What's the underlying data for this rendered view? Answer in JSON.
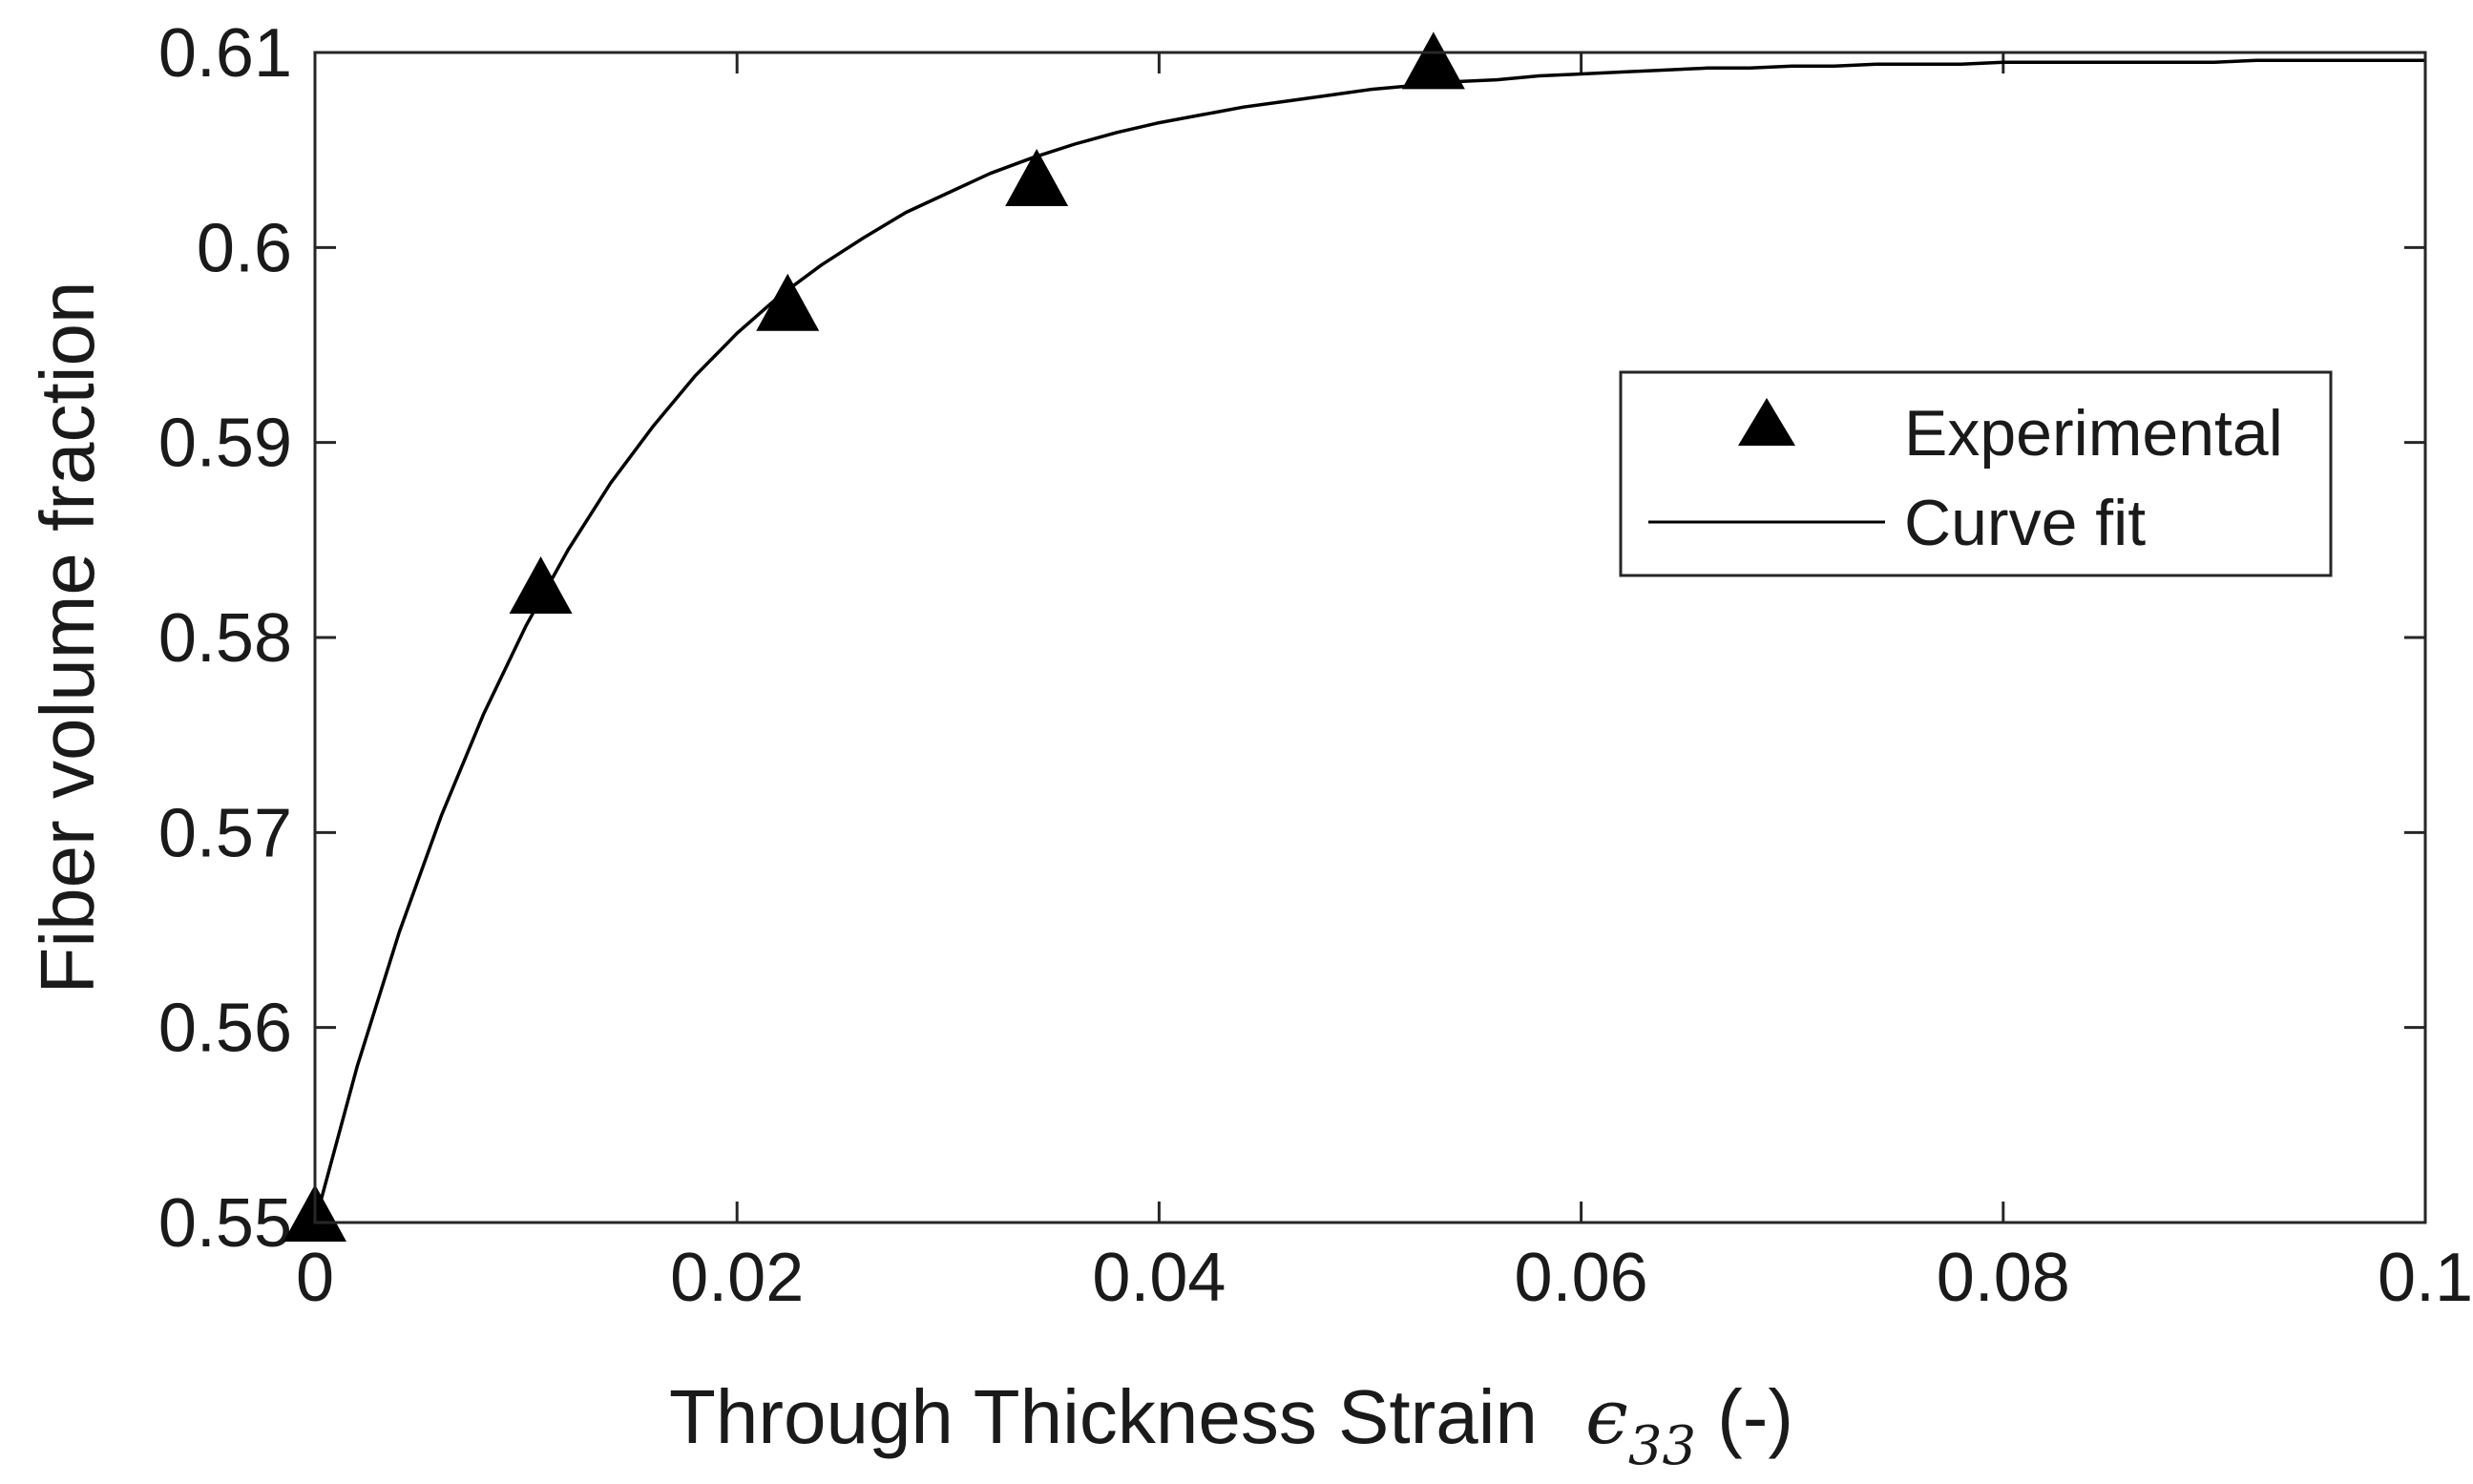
{
  "chart_data": {
    "type": "scatter",
    "title": "",
    "xlabel": {
      "prefix": "Through Thickness Strain",
      "symbol": "ϵ",
      "subscript": "33",
      "suffix": "(-)"
    },
    "ylabel": "Fiber volume fraction",
    "xlim": [
      0,
      0.1
    ],
    "ylim": [
      0.55,
      0.61
    ],
    "xticks": [
      0,
      0.02,
      0.04,
      0.06,
      0.08,
      0.1
    ],
    "xtick_labels": [
      "0",
      "0.02",
      "0.04",
      "0.06",
      "0.08",
      "0.1"
    ],
    "yticks": [
      0.55,
      0.56,
      0.57,
      0.58,
      0.59,
      0.6,
      0.61
    ],
    "ytick_labels": [
      "0.55",
      "0.56",
      "0.57",
      "0.58",
      "0.59",
      "0.6",
      "0.61"
    ],
    "grid": false,
    "legend_position": "upper-right",
    "series": [
      {
        "name": "Experimental",
        "kind": "markers",
        "marker": "triangle",
        "color": "#000000",
        "x": [
          0.0,
          0.0107,
          0.0224,
          0.0342,
          0.053
        ],
        "y": [
          0.55,
          0.5822,
          0.5967,
          0.6031,
          0.6091
        ]
      },
      {
        "name": "Curve fit",
        "kind": "line",
        "color": "#000000",
        "x": [
          0,
          0.002,
          0.004,
          0.006,
          0.008,
          0.01,
          0.012,
          0.014,
          0.016,
          0.018,
          0.02,
          0.022,
          0.024,
          0.026,
          0.028,
          0.03,
          0.032,
          0.034,
          0.036,
          0.038,
          0.04,
          0.042,
          0.044,
          0.046,
          0.048,
          0.05,
          0.052,
          0.054,
          0.056,
          0.058,
          0.06,
          0.062,
          0.064,
          0.066,
          0.068,
          0.07,
          0.072,
          0.074,
          0.076,
          0.078,
          0.08,
          0.082,
          0.084,
          0.086,
          0.088,
          0.09,
          0.092,
          0.094,
          0.096,
          0.098,
          0.1
        ],
        "y": [
          0.55,
          0.558,
          0.5649,
          0.5709,
          0.5761,
          0.5806,
          0.5845,
          0.5879,
          0.5908,
          0.5934,
          0.5956,
          0.5975,
          0.5991,
          0.6005,
          0.6018,
          0.6028,
          0.6038,
          0.6046,
          0.6053,
          0.6059,
          0.6064,
          0.6068,
          0.6072,
          0.6075,
          0.6078,
          0.6081,
          0.6083,
          0.6085,
          0.6086,
          0.6088,
          0.6089,
          0.609,
          0.6091,
          0.6092,
          0.6092,
          0.6093,
          0.6093,
          0.6094,
          0.6094,
          0.6094,
          0.6095,
          0.6095,
          0.6095,
          0.6095,
          0.6095,
          0.6095,
          0.6096,
          0.6096,
          0.6096,
          0.6096,
          0.6096
        ]
      }
    ]
  }
}
